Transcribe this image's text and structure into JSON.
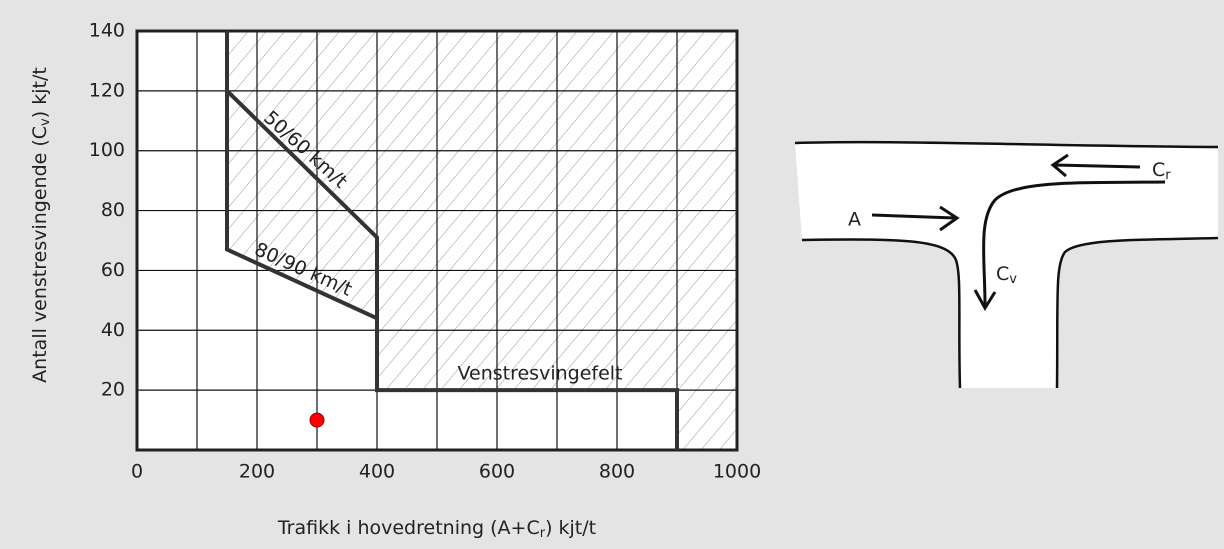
{
  "chart_data": {
    "type": "region",
    "x_label": [
      "Trafikk i hovedretning (A+C",
      "r",
      ") kjt/t"
    ],
    "y_label": [
      "Antall venstresvingende (C",
      "v",
      ") kjt/t"
    ],
    "xlim": [
      0,
      1000
    ],
    "xticks": [
      0,
      200,
      400,
      600,
      800,
      1000
    ],
    "minor_xticks": [
      100,
      300,
      500,
      700,
      900
    ],
    "ylim": [
      0,
      140
    ],
    "yticks": [
      20,
      40,
      60,
      80,
      100,
      120,
      140
    ],
    "grid": true,
    "boundary": {
      "x": [
        150,
        150,
        400,
        400,
        900,
        900
      ],
      "y": [
        140,
        67,
        44,
        20,
        20,
        0
      ]
    },
    "upper_line": {
      "x": [
        150,
        400,
        400
      ],
      "y": [
        120,
        71,
        44
      ]
    },
    "annotations": [
      "50/60 km/t",
      "80/90 km/t",
      "Venstresvingefelt"
    ],
    "points": {
      "x": [
        300
      ],
      "y": [
        10
      ],
      "color": "#ff0000"
    }
  },
  "diagram": {
    "labels": {
      "a": "A",
      "c": "C",
      "r": "r",
      "v": "v"
    }
  }
}
